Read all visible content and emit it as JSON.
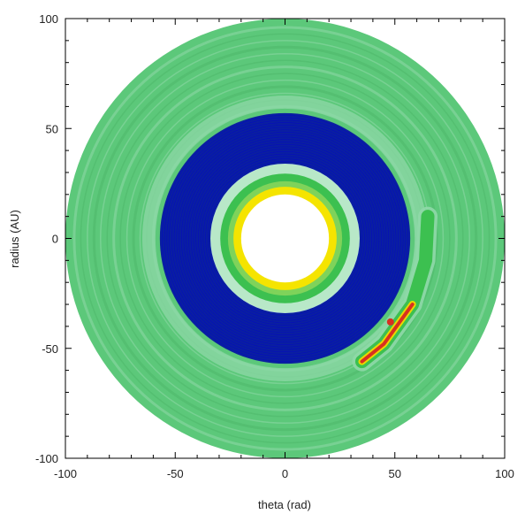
{
  "chart_data": {
    "type": "heatmap",
    "projection": "polar",
    "title": "",
    "xlabel": "theta (rad)",
    "ylabel": "radius (AU)",
    "xlim": [
      -100,
      100
    ],
    "ylim": [
      -100,
      100
    ],
    "xticks": [
      -100,
      -50,
      0,
      50,
      100
    ],
    "yticks": [
      -100,
      -50,
      0,
      50,
      100
    ],
    "grid": false,
    "colors": {
      "outer_disk": "#5cc87a",
      "outer_band_light": "#8fd8a8",
      "gap": "#0a1fa0",
      "gap_edge": "#0000d0",
      "ring_light": "#b8e8c8",
      "ring_green": "#3cc050",
      "ring_yellow": "#f5e400",
      "spiral_green": "#3cc050",
      "spiral_yellow": "#e8d800",
      "spiral_red": "#d83020",
      "background": "#ffffff"
    },
    "regions": [
      {
        "name": "inner hole",
        "r_min": 0,
        "r_max": 20
      },
      {
        "name": "inner bright ring",
        "r_min": 20,
        "r_max": 32
      },
      {
        "name": "gap",
        "r_min": 32,
        "r_max": 57
      },
      {
        "name": "outer disk",
        "r_min": 57,
        "r_max": 100
      }
    ],
    "feature": {
      "name": "spiral arm",
      "path": [
        [
          65,
          10
        ],
        [
          64,
          -10
        ],
        [
          58,
          -30
        ],
        [
          45,
          -48
        ],
        [
          35,
          -56
        ]
      ],
      "peak": [
        48,
        -38
      ]
    }
  }
}
